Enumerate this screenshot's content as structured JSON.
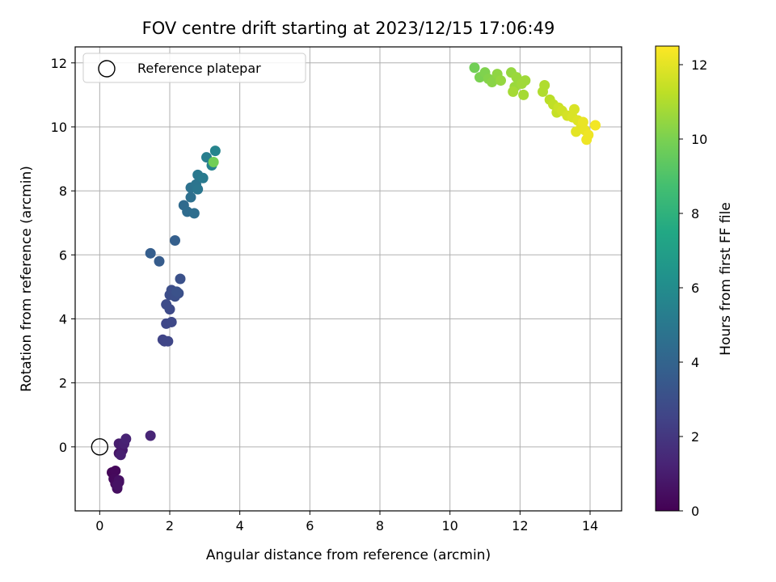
{
  "chart_data": {
    "type": "scatter",
    "title": "FOV centre drift starting at 2023/12/15 17:06:49",
    "xlabel": "Angular distance from reference (arcmin)",
    "ylabel": "Rotation from reference (arcmin)",
    "xlim": [
      -0.7,
      14.9
    ],
    "ylim": [
      -2.0,
      12.5
    ],
    "x_ticks": [
      0,
      2,
      4,
      6,
      8,
      10,
      12,
      14
    ],
    "y_ticks": [
      0,
      2,
      4,
      6,
      8,
      10,
      12
    ],
    "grid": true,
    "legend": {
      "placement": "top-left",
      "entries": [
        {
          "label": "Reference platepar",
          "marker": "open-circle"
        }
      ]
    },
    "reference_point": {
      "x": 0,
      "y": 0
    },
    "colorbar": {
      "label": "Hours from first FF file",
      "colormap": "viridis",
      "range": [
        0,
        12.5
      ],
      "ticks": [
        0,
        2,
        4,
        6,
        8,
        10,
        12
      ]
    },
    "series": [
      {
        "color_by": "hours",
        "points": [
          [
            0.35,
            -0.8,
            0.2
          ],
          [
            0.45,
            -0.75,
            0.25
          ],
          [
            0.4,
            -1.0,
            0.3
          ],
          [
            0.45,
            -1.15,
            0.35
          ],
          [
            0.5,
            -1.25,
            0.4
          ],
          [
            0.5,
            -1.3,
            0.45
          ],
          [
            0.55,
            -1.1,
            0.5
          ],
          [
            0.55,
            -1.05,
            0.55
          ],
          [
            0.5,
            -1.2,
            0.6
          ],
          [
            0.55,
            -0.2,
            0.7
          ],
          [
            0.6,
            0.05,
            0.8
          ],
          [
            0.65,
            -0.1,
            0.9
          ],
          [
            0.55,
            0.1,
            1.0
          ],
          [
            0.6,
            -0.25,
            1.1
          ],
          [
            0.7,
            0.1,
            1.15
          ],
          [
            0.75,
            0.25,
            1.2
          ],
          [
            1.45,
            0.35,
            1.3
          ],
          [
            1.8,
            3.35,
            2.5
          ],
          [
            1.85,
            3.3,
            2.6
          ],
          [
            1.95,
            3.3,
            2.65
          ],
          [
            1.9,
            3.85,
            2.7
          ],
          [
            2.05,
            3.9,
            2.75
          ],
          [
            2.0,
            4.3,
            2.8
          ],
          [
            1.9,
            4.45,
            2.85
          ],
          [
            2.0,
            4.75,
            2.9
          ],
          [
            2.05,
            4.9,
            2.95
          ],
          [
            2.15,
            4.7,
            3.0
          ],
          [
            2.25,
            4.8,
            3.05
          ],
          [
            2.3,
            5.25,
            3.1
          ],
          [
            2.2,
            4.85,
            3.15
          ],
          [
            1.7,
            5.8,
            3.6
          ],
          [
            1.45,
            6.05,
            3.7
          ],
          [
            2.15,
            6.45,
            3.8
          ],
          [
            2.4,
            7.55,
            4.3
          ],
          [
            2.5,
            7.35,
            4.4
          ],
          [
            2.7,
            7.3,
            4.5
          ],
          [
            2.6,
            7.8,
            4.6
          ],
          [
            2.6,
            8.1,
            4.7
          ],
          [
            2.75,
            8.2,
            4.8
          ],
          [
            2.8,
            8.05,
            4.9
          ],
          [
            2.8,
            8.5,
            5.0
          ],
          [
            2.95,
            8.4,
            5.1
          ],
          [
            3.05,
            9.05,
            5.3
          ],
          [
            3.2,
            8.8,
            5.5
          ],
          [
            3.3,
            9.25,
            5.6
          ],
          [
            3.25,
            8.9,
            9.8
          ],
          [
            10.7,
            11.85,
            9.8
          ],
          [
            10.85,
            11.55,
            10.0
          ],
          [
            11.0,
            11.7,
            10.1
          ],
          [
            11.1,
            11.5,
            10.2
          ],
          [
            11.2,
            11.4,
            10.3
          ],
          [
            11.35,
            11.65,
            10.4
          ],
          [
            11.45,
            11.45,
            10.5
          ],
          [
            11.75,
            11.7,
            10.5
          ],
          [
            11.85,
            11.25,
            10.6
          ],
          [
            11.9,
            11.55,
            10.6
          ],
          [
            12.05,
            11.35,
            10.7
          ],
          [
            12.15,
            11.45,
            10.7
          ],
          [
            11.8,
            11.1,
            10.8
          ],
          [
            12.1,
            11.0,
            10.8
          ],
          [
            12.65,
            11.1,
            11.0
          ],
          [
            12.7,
            11.3,
            11.0
          ],
          [
            12.85,
            10.85,
            11.2
          ],
          [
            12.95,
            10.7,
            11.3
          ],
          [
            13.05,
            10.45,
            11.4
          ],
          [
            13.1,
            10.6,
            11.5
          ],
          [
            13.2,
            10.5,
            11.6
          ],
          [
            13.35,
            10.35,
            11.7
          ],
          [
            13.5,
            10.3,
            11.8
          ],
          [
            13.55,
            10.55,
            11.8
          ],
          [
            13.65,
            10.2,
            11.9
          ],
          [
            13.6,
            9.85,
            12.0
          ],
          [
            13.75,
            10.0,
            12.0
          ],
          [
            13.8,
            10.15,
            12.1
          ],
          [
            13.85,
            9.9,
            12.1
          ],
          [
            13.9,
            9.6,
            12.2
          ],
          [
            13.95,
            9.75,
            12.2
          ],
          [
            14.15,
            10.05,
            12.3
          ]
        ]
      }
    ]
  }
}
